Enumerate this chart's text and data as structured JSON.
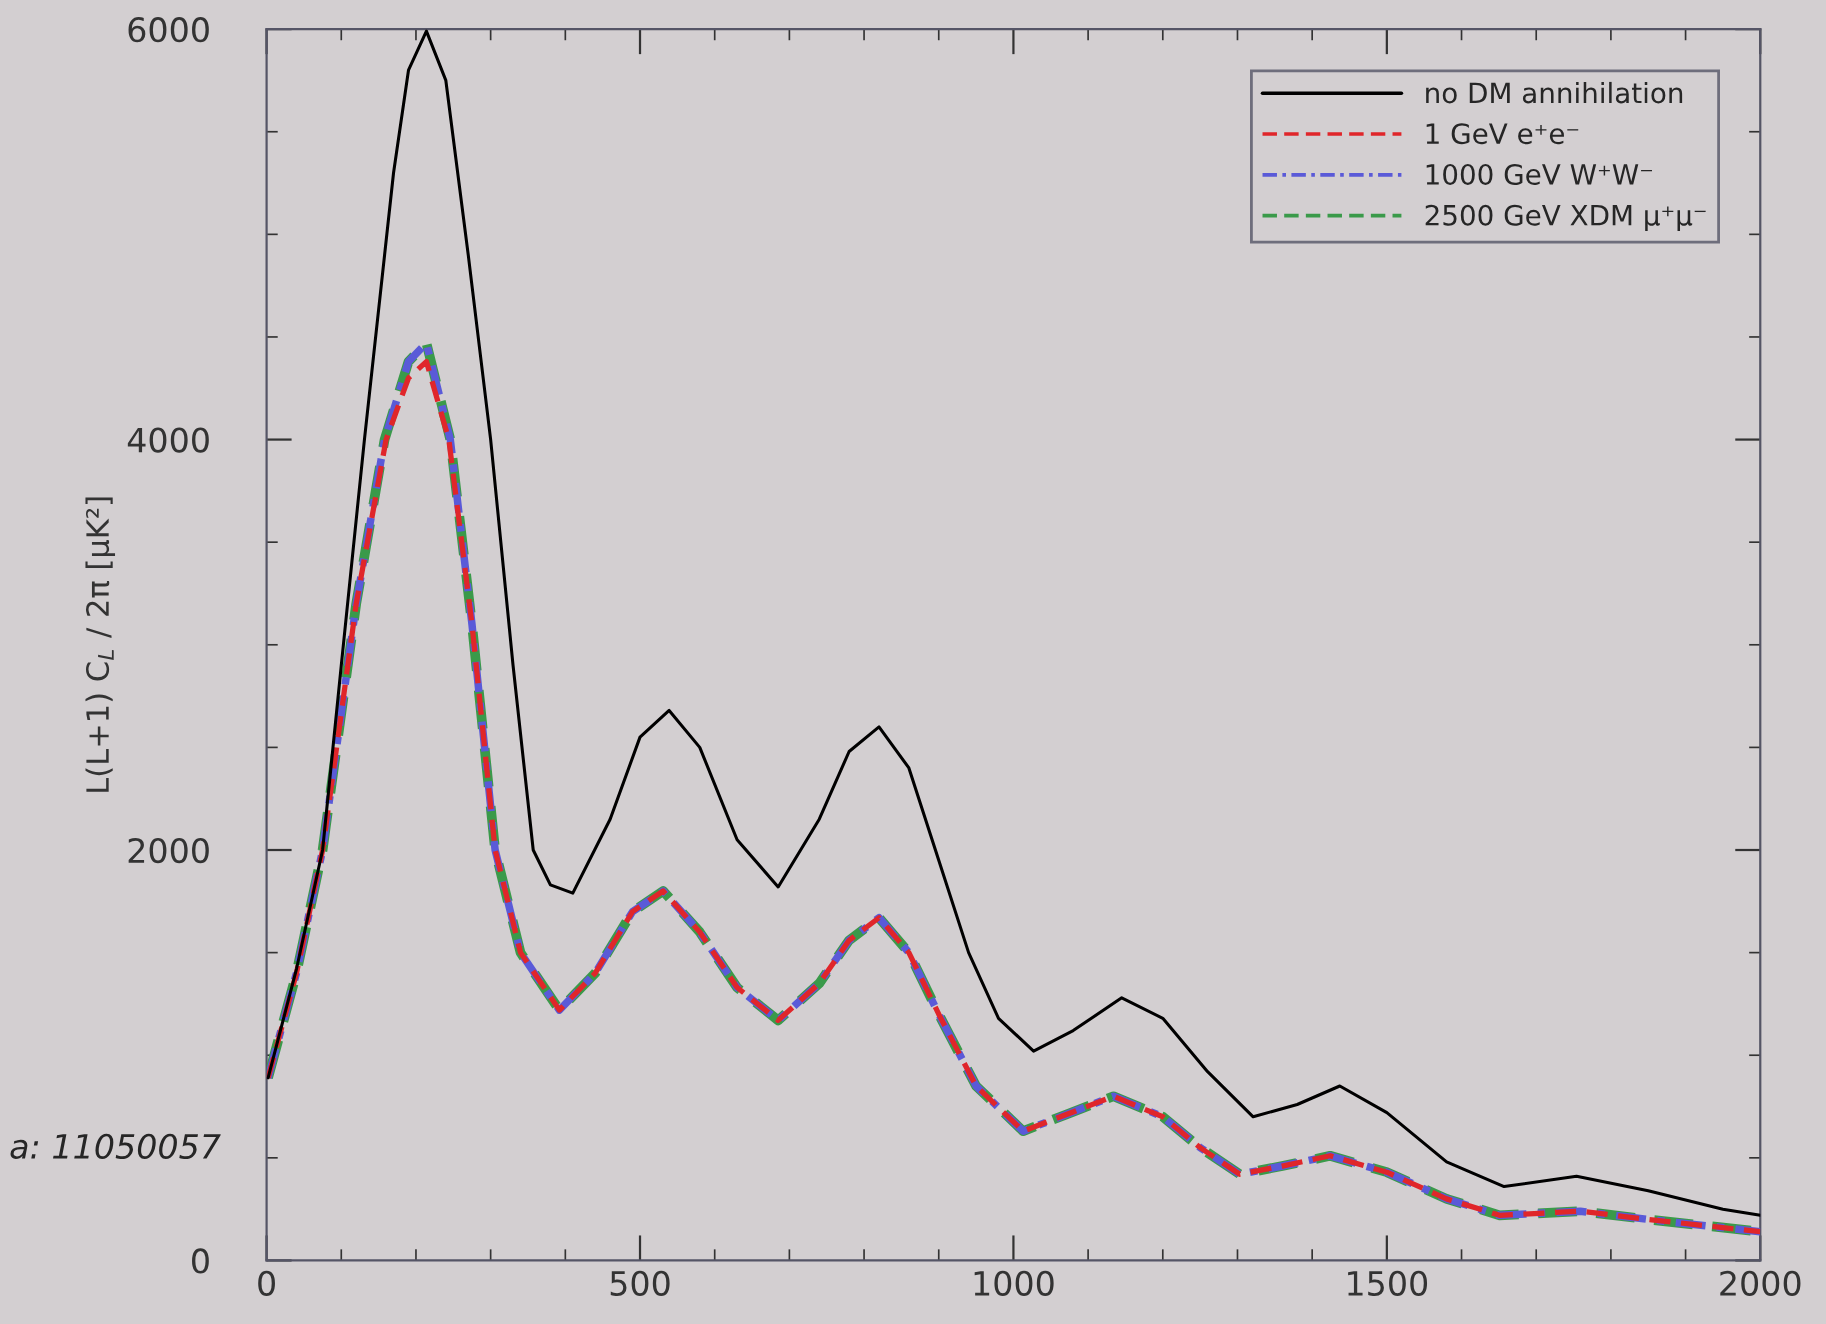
{
  "chart_data": {
    "type": "line",
    "ylabel": "L(L+1) C$_{L}$ / 2π [μK²]",
    "xlim": [
      0,
      2000
    ],
    "xticks": [
      0,
      500,
      1000,
      1500,
      2000
    ],
    "ylim": [
      0,
      6000
    ],
    "yticks": [
      0,
      2000,
      4000,
      6000
    ],
    "legend": "top right",
    "grid": false,
    "annotations": [
      "a: 11050057"
    ],
    "series": [
      {
        "name": "no DM annihilation",
        "color": "#000000",
        "line_style": "solid",
        "x": [
          2,
          40,
          75,
          100,
          131,
          170,
          190,
          214,
          240,
          270,
          300,
          330,
          357,
          380,
          410,
          460,
          500,
          539,
          580,
          630,
          685,
          740,
          780,
          820,
          860,
          900,
          940,
          980,
          1027,
          1080,
          1145,
          1200,
          1260,
          1321,
          1380,
          1437,
          1500,
          1580,
          1657,
          1754,
          1850,
          1950,
          2000
        ],
        "values": [
          890,
          1420,
          2000,
          2900,
          4000,
          5300,
          5800,
          5990,
          5750,
          4900,
          4000,
          2900,
          2000,
          1830,
          1790,
          2150,
          2550,
          2680,
          2500,
          2050,
          1820,
          2150,
          2480,
          2600,
          2400,
          1950,
          1500,
          1180,
          1020,
          1120,
          1280,
          1180,
          920,
          700,
          760,
          850,
          720,
          480,
          360,
          410,
          340,
          250,
          220
        ]
      },
      {
        "name": "1 GeV e⁺e⁻",
        "color": "#e0262a",
        "line_style": "dashed",
        "x": [
          2,
          40,
          75,
          120,
          160,
          190,
          214,
          244,
          275,
          306,
          340,
          392,
          440,
          490,
          531,
          580,
          630,
          685,
          740,
          780,
          820,
          860,
          900,
          950,
          1013,
          1070,
          1134,
          1200,
          1250,
          1303,
          1360,
          1424,
          1500,
          1580,
          1651,
          1759,
          1850,
          2000
        ],
        "values": [
          890,
          1400,
          2000,
          3200,
          4000,
          4300,
          4380,
          4000,
          3100,
          2000,
          1500,
          1220,
          1400,
          1700,
          1800,
          1600,
          1330,
          1170,
          1350,
          1560,
          1670,
          1500,
          1200,
          850,
          630,
          710,
          800,
          700,
          550,
          420,
          460,
          510,
          430,
          300,
          220,
          240,
          200,
          140
        ]
      },
      {
        "name": "1000 GeV W⁺W⁻",
        "color": "#5a5ad8",
        "line_style": "dotted",
        "x": [
          2,
          40,
          75,
          120,
          158,
          190,
          214,
          246,
          275,
          306,
          340,
          392,
          440,
          490,
          531,
          580,
          630,
          685,
          740,
          780,
          820,
          860,
          900,
          950,
          1013,
          1070,
          1134,
          1200,
          1250,
          1303,
          1360,
          1424,
          1500,
          1580,
          1651,
          1759,
          1850,
          2000
        ],
        "values": [
          890,
          1400,
          2000,
          3200,
          4000,
          4380,
          4470,
          4000,
          3100,
          2000,
          1500,
          1220,
          1400,
          1700,
          1800,
          1600,
          1330,
          1170,
          1350,
          1560,
          1670,
          1500,
          1200,
          850,
          630,
          710,
          800,
          700,
          550,
          420,
          460,
          510,
          430,
          300,
          220,
          240,
          200,
          140
        ]
      },
      {
        "name": "2500 GeV XDM μ⁺μ⁻",
        "color": "#3a9a4a",
        "line_style": "dashed",
        "x": [
          2,
          40,
          75,
          120,
          158,
          190,
          214,
          246,
          275,
          306,
          340,
          392,
          440,
          490,
          531,
          580,
          630,
          685,
          740,
          780,
          820,
          860,
          900,
          950,
          1013,
          1070,
          1134,
          1200,
          1250,
          1303,
          1360,
          1424,
          1500,
          1580,
          1651,
          1759,
          1850,
          2000
        ],
        "values": [
          890,
          1400,
          2000,
          3200,
          4000,
          4380,
          4470,
          4000,
          3100,
          2000,
          1500,
          1220,
          1400,
          1700,
          1800,
          1600,
          1330,
          1170,
          1350,
          1560,
          1670,
          1500,
          1200,
          850,
          630,
          710,
          800,
          700,
          550,
          420,
          460,
          510,
          430,
          300,
          220,
          240,
          200,
          140
        ]
      }
    ]
  }
}
